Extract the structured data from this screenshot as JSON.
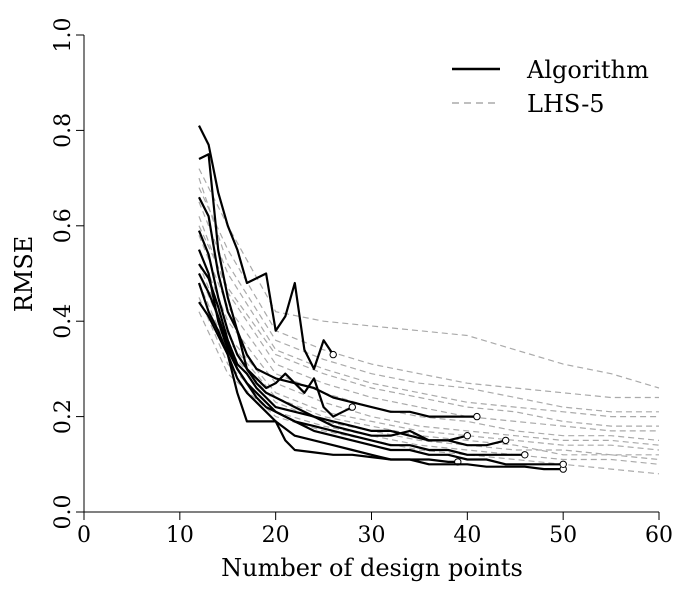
{
  "chart_data": {
    "type": "line",
    "title": "",
    "xlabel": "Number of design points",
    "ylabel": "RMSE",
    "xlim": [
      0,
      60
    ],
    "ylim": [
      0,
      1
    ],
    "xticks": [
      0,
      10,
      20,
      30,
      40,
      50,
      60
    ],
    "yticks": [
      "0.0",
      "0.2",
      "0.4",
      "0.6",
      "0.8",
      "1.0"
    ],
    "grid": false,
    "legend": {
      "placement": "top-right",
      "entries": [
        {
          "label": "Algorithm",
          "color": "#000000",
          "dash": "solid"
        },
        {
          "label": "LHS-5",
          "color": "#aaaaaa",
          "dash": "dashed"
        }
      ]
    },
    "series": [
      {
        "name": "Algorithm",
        "color": "#000000",
        "end_marker": true,
        "x": [
          12,
          13,
          14,
          15,
          16,
          17,
          18,
          19,
          20,
          21,
          22,
          23,
          24,
          25,
          26
        ],
        "y": [
          0.81,
          0.77,
          0.67,
          0.6,
          0.55,
          0.48,
          0.49,
          0.5,
          0.38,
          0.41,
          0.48,
          0.34,
          0.3,
          0.36,
          0.33
        ]
      },
      {
        "name": "Algorithm",
        "color": "#000000",
        "end_marker": true,
        "x": [
          12,
          13,
          14,
          15,
          16,
          17,
          18,
          19,
          20,
          21,
          22,
          23,
          24,
          25,
          26,
          27,
          28
        ],
        "y": [
          0.74,
          0.75,
          0.55,
          0.45,
          0.38,
          0.3,
          0.28,
          0.26,
          0.27,
          0.29,
          0.27,
          0.25,
          0.28,
          0.22,
          0.2,
          0.21,
          0.22
        ]
      },
      {
        "name": "Algorithm",
        "color": "#000000",
        "end_marker": true,
        "x": [
          12,
          13,
          14,
          15,
          16,
          17,
          18,
          19,
          20,
          22,
          24,
          26,
          28,
          30,
          32,
          34,
          36,
          38,
          40,
          41
        ],
        "y": [
          0.66,
          0.62,
          0.5,
          0.42,
          0.38,
          0.33,
          0.3,
          0.29,
          0.28,
          0.27,
          0.26,
          0.24,
          0.23,
          0.22,
          0.21,
          0.21,
          0.2,
          0.2,
          0.2,
          0.2
        ]
      },
      {
        "name": "Algorithm",
        "color": "#000000",
        "end_marker": true,
        "x": [
          12,
          13,
          14,
          15,
          16,
          17,
          18,
          19,
          20,
          22,
          24,
          26,
          28,
          30,
          32,
          34,
          36,
          38,
          40
        ],
        "y": [
          0.59,
          0.54,
          0.45,
          0.38,
          0.33,
          0.3,
          0.27,
          0.25,
          0.24,
          0.22,
          0.2,
          0.18,
          0.17,
          0.16,
          0.16,
          0.17,
          0.15,
          0.15,
          0.16
        ]
      },
      {
        "name": "Algorithm",
        "color": "#000000",
        "end_marker": true,
        "x": [
          12,
          13,
          14,
          15,
          16,
          17,
          18,
          19,
          20,
          22,
          24,
          26,
          28,
          30,
          32,
          34,
          36,
          38,
          40,
          42,
          44
        ],
        "y": [
          0.52,
          0.49,
          0.43,
          0.36,
          0.31,
          0.29,
          0.26,
          0.24,
          0.22,
          0.21,
          0.2,
          0.19,
          0.18,
          0.17,
          0.17,
          0.16,
          0.15,
          0.15,
          0.14,
          0.14,
          0.15
        ]
      },
      {
        "name": "Algorithm",
        "color": "#000000",
        "end_marker": true,
        "x": [
          12,
          13,
          14,
          15,
          16,
          17,
          18,
          19,
          20,
          22,
          24,
          26,
          28,
          30,
          32,
          34,
          36,
          38,
          40,
          42,
          44,
          46
        ],
        "y": [
          0.5,
          0.46,
          0.41,
          0.35,
          0.3,
          0.27,
          0.24,
          0.22,
          0.21,
          0.19,
          0.18,
          0.17,
          0.16,
          0.15,
          0.14,
          0.14,
          0.13,
          0.13,
          0.12,
          0.12,
          0.12,
          0.12
        ]
      },
      {
        "name": "Algorithm",
        "color": "#000000",
        "end_marker": true,
        "x": [
          12,
          13,
          14,
          15,
          16,
          17,
          18,
          19,
          20,
          22,
          24,
          26,
          28,
          30,
          32,
          34,
          36,
          38,
          39
        ],
        "y": [
          0.44,
          0.41,
          0.37,
          0.33,
          0.28,
          0.25,
          0.23,
          0.21,
          0.19,
          0.16,
          0.15,
          0.14,
          0.13,
          0.12,
          0.11,
          0.11,
          0.11,
          0.105,
          0.105
        ]
      },
      {
        "name": "Algorithm",
        "color": "#000000",
        "end_marker": true,
        "x": [
          12,
          13,
          14,
          15,
          16,
          17,
          18,
          19,
          20,
          21,
          22,
          24,
          26,
          28,
          30,
          32,
          34,
          36,
          38,
          40,
          42,
          44,
          46,
          48,
          50
        ],
        "y": [
          0.48,
          0.42,
          0.38,
          0.33,
          0.25,
          0.19,
          0.19,
          0.19,
          0.19,
          0.15,
          0.13,
          0.125,
          0.12,
          0.12,
          0.115,
          0.11,
          0.11,
          0.1,
          0.1,
          0.1,
          0.095,
          0.095,
          0.095,
          0.09,
          0.09
        ]
      },
      {
        "name": "Algorithm",
        "color": "#000000",
        "end_marker": true,
        "x": [
          12,
          13,
          14,
          15,
          16,
          17,
          18,
          19,
          20,
          22,
          24,
          26,
          28,
          30,
          32,
          34,
          36,
          38,
          40,
          42,
          44,
          46,
          48,
          50
        ],
        "y": [
          0.55,
          0.5,
          0.4,
          0.34,
          0.3,
          0.27,
          0.25,
          0.23,
          0.21,
          0.19,
          0.17,
          0.16,
          0.15,
          0.14,
          0.13,
          0.13,
          0.12,
          0.12,
          0.11,
          0.11,
          0.1,
          0.1,
          0.1,
          0.1
        ]
      },
      {
        "name": "LHS-5",
        "color": "#aaaaaa",
        "x": [
          12,
          15,
          20,
          25,
          30,
          35,
          40,
          45,
          50,
          55,
          60
        ],
        "y": [
          0.72,
          0.6,
          0.42,
          0.4,
          0.39,
          0.38,
          0.37,
          0.34,
          0.31,
          0.29,
          0.26
        ]
      },
      {
        "name": "LHS-5",
        "color": "#aaaaaa",
        "x": [
          12,
          15,
          20,
          25,
          30,
          35,
          40,
          45,
          50,
          55,
          60
        ],
        "y": [
          0.68,
          0.55,
          0.38,
          0.34,
          0.31,
          0.29,
          0.27,
          0.26,
          0.25,
          0.24,
          0.24
        ]
      },
      {
        "name": "LHS-5",
        "color": "#aaaaaa",
        "x": [
          12,
          15,
          20,
          25,
          30,
          35,
          40,
          45,
          50,
          55,
          60
        ],
        "y": [
          0.65,
          0.5,
          0.34,
          0.3,
          0.27,
          0.25,
          0.23,
          0.22,
          0.21,
          0.2,
          0.2
        ]
      },
      {
        "name": "LHS-5",
        "color": "#aaaaaa",
        "x": [
          12,
          15,
          20,
          25,
          30,
          35,
          40,
          45,
          50,
          55,
          60
        ],
        "y": [
          0.62,
          0.46,
          0.31,
          0.27,
          0.24,
          0.22,
          0.2,
          0.19,
          0.18,
          0.17,
          0.17
        ]
      },
      {
        "name": "LHS-5",
        "color": "#aaaaaa",
        "x": [
          12,
          15,
          20,
          25,
          30,
          35,
          40,
          45,
          50,
          55,
          60
        ],
        "y": [
          0.58,
          0.43,
          0.29,
          0.25,
          0.22,
          0.2,
          0.19,
          0.17,
          0.16,
          0.16,
          0.15
        ]
      },
      {
        "name": "LHS-5",
        "color": "#aaaaaa",
        "x": [
          12,
          15,
          20,
          25,
          30,
          35,
          40,
          45,
          50,
          55,
          60
        ],
        "y": [
          0.55,
          0.4,
          0.27,
          0.23,
          0.2,
          0.18,
          0.17,
          0.16,
          0.15,
          0.15,
          0.14
        ]
      },
      {
        "name": "LHS-5",
        "color": "#aaaaaa",
        "x": [
          12,
          15,
          20,
          25,
          30,
          35,
          40,
          45,
          50,
          55,
          60
        ],
        "y": [
          0.52,
          0.37,
          0.25,
          0.21,
          0.19,
          0.17,
          0.16,
          0.15,
          0.14,
          0.14,
          0.13
        ]
      },
      {
        "name": "LHS-5",
        "color": "#aaaaaa",
        "x": [
          12,
          15,
          20,
          25,
          30,
          35,
          40,
          45,
          50,
          55,
          60
        ],
        "y": [
          0.48,
          0.34,
          0.23,
          0.19,
          0.17,
          0.15,
          0.14,
          0.13,
          0.13,
          0.12,
          0.12
        ]
      },
      {
        "name": "LHS-5",
        "color": "#aaaaaa",
        "x": [
          12,
          15,
          20,
          25,
          30,
          35,
          40,
          45,
          50,
          55,
          60
        ],
        "y": [
          0.45,
          0.31,
          0.21,
          0.18,
          0.16,
          0.14,
          0.13,
          0.12,
          0.11,
          0.11,
          0.1
        ]
      },
      {
        "name": "LHS-5",
        "color": "#aaaaaa",
        "x": [
          12,
          15,
          20,
          25,
          30,
          35,
          40,
          45,
          50,
          55,
          60
        ],
        "y": [
          0.6,
          0.47,
          0.33,
          0.29,
          0.26,
          0.24,
          0.22,
          0.21,
          0.19,
          0.18,
          0.18
        ]
      },
      {
        "name": "LHS-5",
        "color": "#aaaaaa",
        "x": [
          12,
          15,
          20,
          25,
          30,
          35,
          40,
          45,
          50,
          55,
          60
        ],
        "y": [
          0.7,
          0.52,
          0.36,
          0.32,
          0.29,
          0.27,
          0.26,
          0.24,
          0.22,
          0.21,
          0.21
        ]
      },
      {
        "name": "LHS-5",
        "color": "#aaaaaa",
        "x": [
          12,
          15,
          20,
          25,
          30,
          35,
          40,
          45,
          50,
          55,
          60
        ],
        "y": [
          0.5,
          0.36,
          0.24,
          0.2,
          0.18,
          0.16,
          0.15,
          0.14,
          0.12,
          0.12,
          0.11
        ]
      },
      {
        "name": "LHS-5",
        "color": "#aaaaaa",
        "x": [
          12,
          15,
          20,
          25,
          30,
          35,
          40,
          45,
          50,
          55,
          60
        ],
        "y": [
          0.42,
          0.29,
          0.2,
          0.17,
          0.15,
          0.13,
          0.12,
          0.11,
          0.1,
          0.09,
          0.08
        ]
      }
    ]
  }
}
